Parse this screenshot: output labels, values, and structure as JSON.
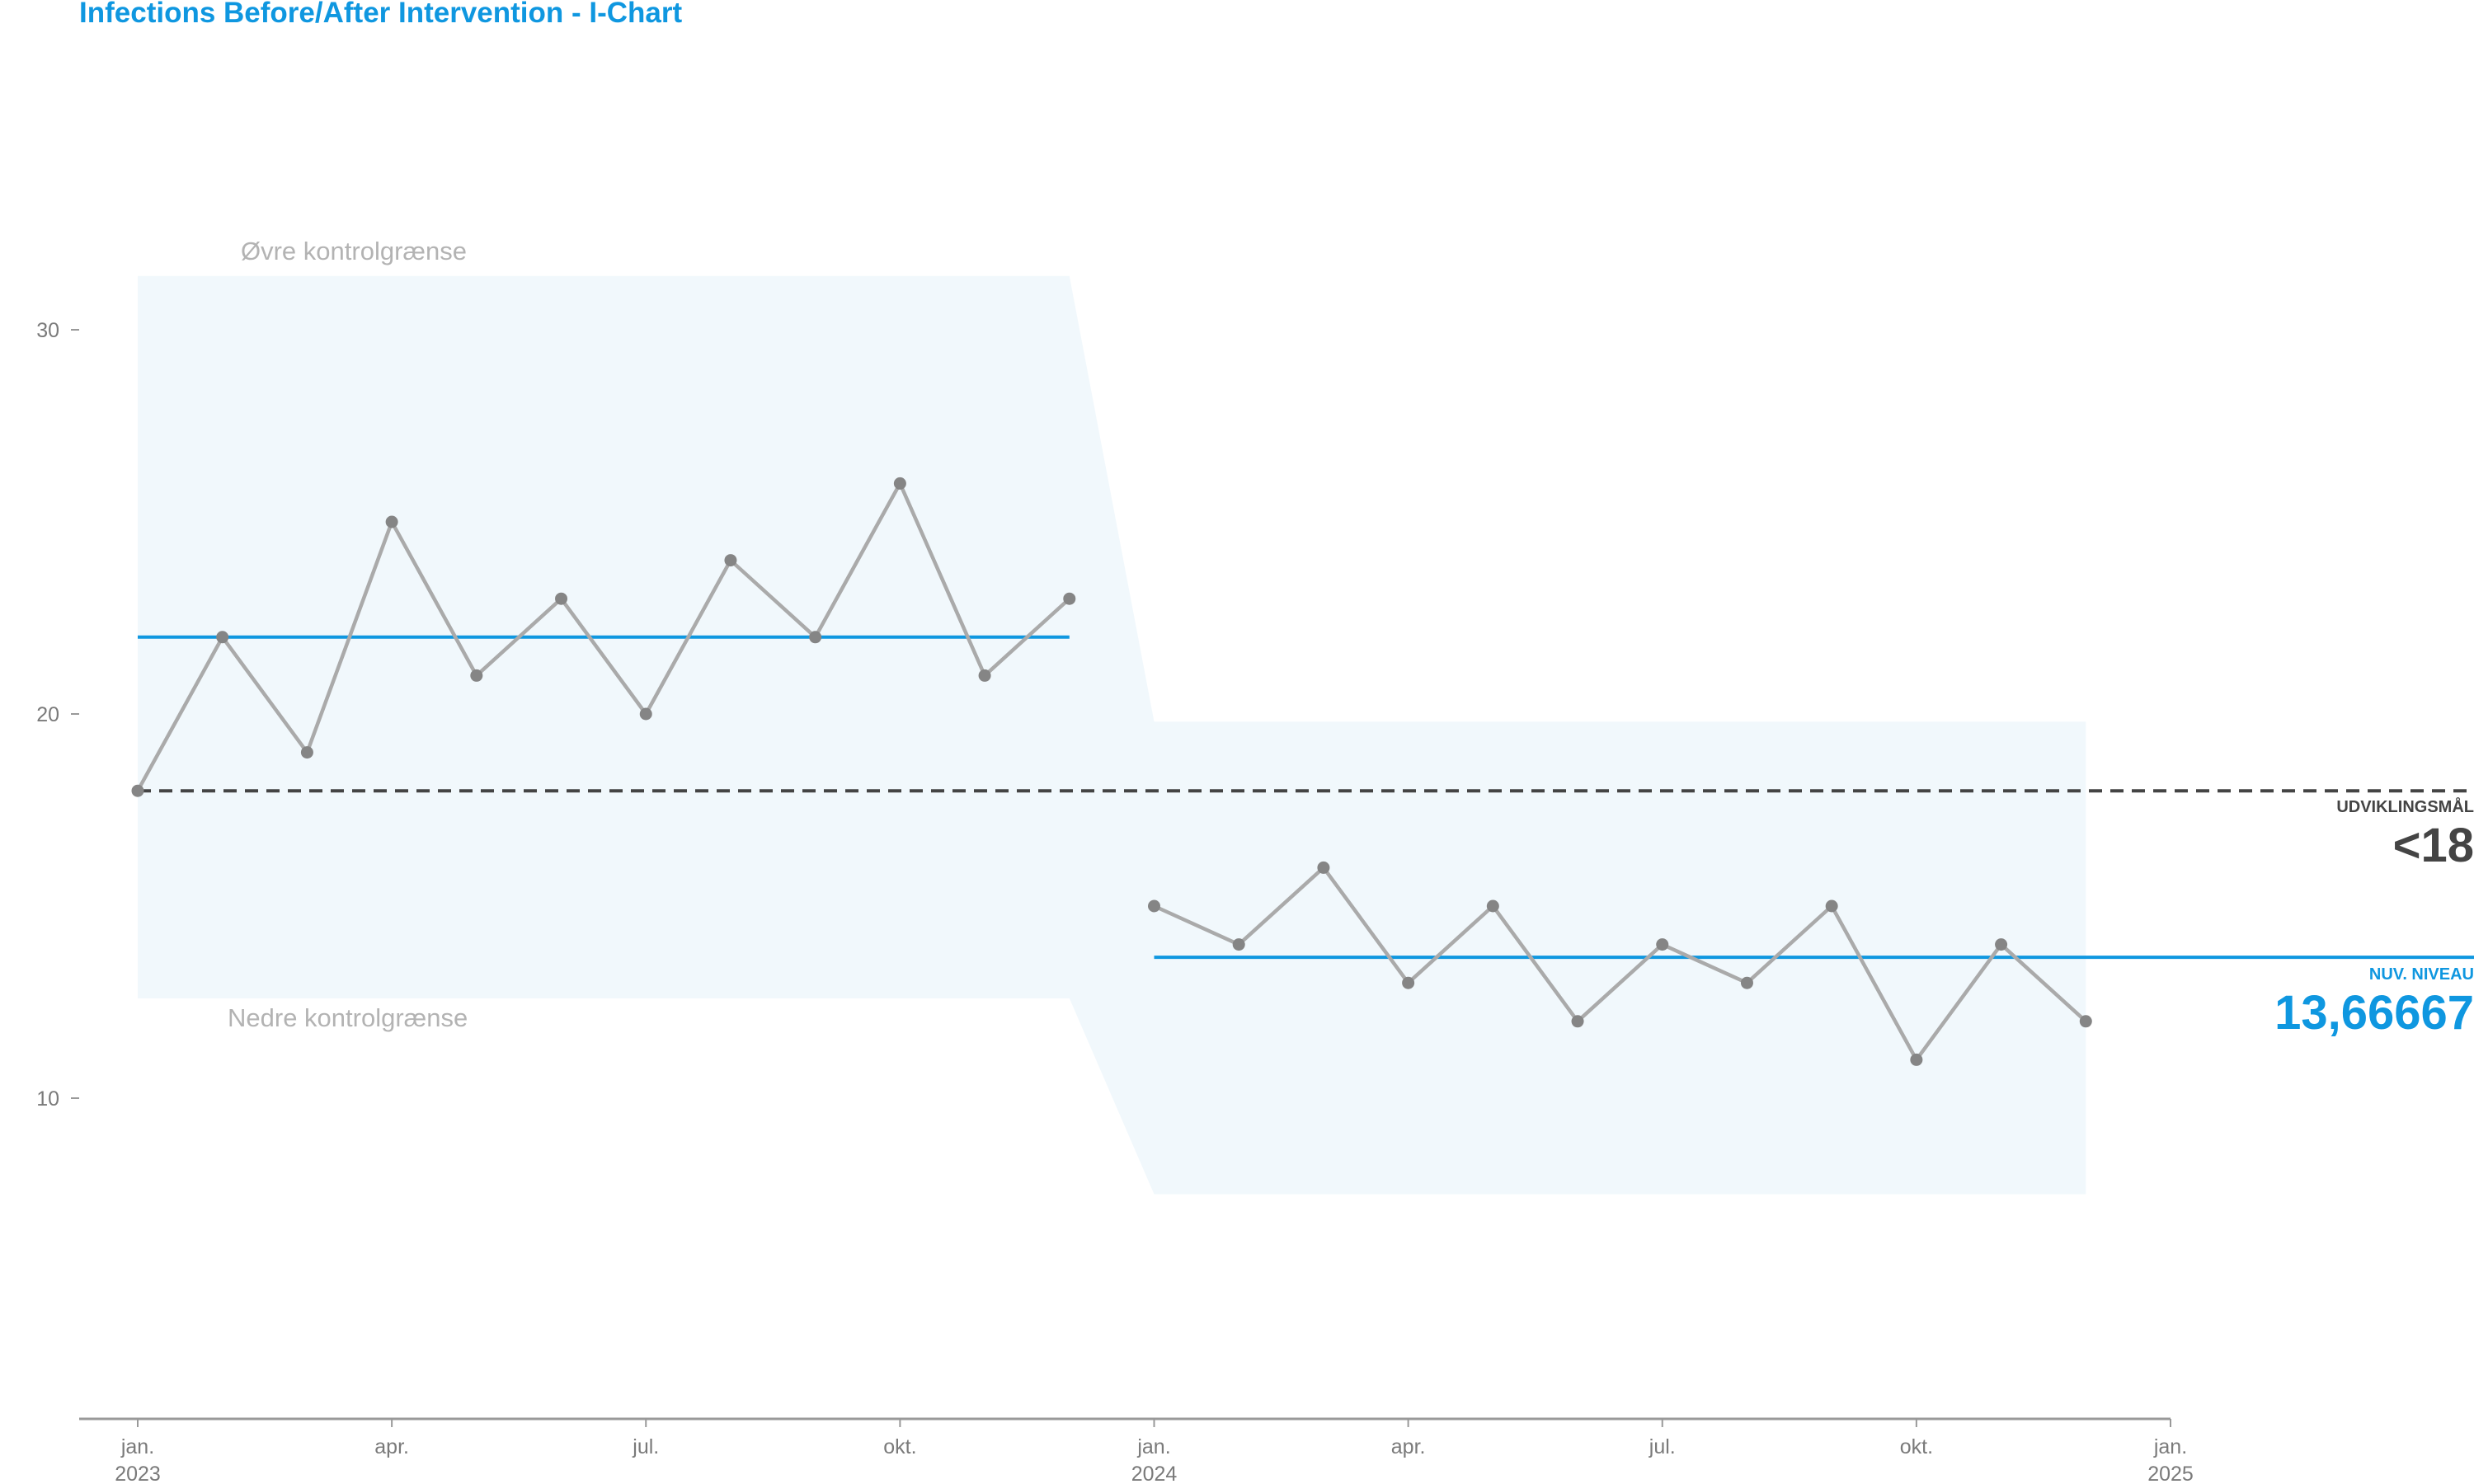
{
  "title": "Infections Before/After Intervention - I-Chart",
  "colors": {
    "title": "#0f97e0",
    "center_line": "#0f97e0",
    "target_line": "#444444",
    "data_line": "#aaaaaa",
    "data_point": "#858585",
    "control_band": "#f1f8fc",
    "axis": "#999999",
    "tick_text": "#7a7a7a",
    "limit_text": "#b3b3b3"
  },
  "labels": {
    "upper_limit": "Øvre kontrolgrænse",
    "lower_limit": "Nedre kontrolgrænse"
  },
  "target": {
    "caption": "UDVIKLINGSMÅL",
    "value_text": "<18"
  },
  "current_level": {
    "caption": "NUV. NIVEAU",
    "value_text": "13,66667"
  },
  "chart_data": {
    "type": "line",
    "title": "Infections Before/After Intervention - I-Chart",
    "xlabel": "",
    "ylabel": "",
    "x_range": [
      "2023-01",
      "2025-01"
    ],
    "y_range": [
      2,
      35
    ],
    "y_ticks": [
      10,
      20,
      30
    ],
    "x_ticks": [
      {
        "date": "2023-01",
        "month": "jan.",
        "year": "2023"
      },
      {
        "date": "2023-04",
        "month": "apr.",
        "year": ""
      },
      {
        "date": "2023-07",
        "month": "jul.",
        "year": ""
      },
      {
        "date": "2023-10",
        "month": "okt.",
        "year": ""
      },
      {
        "date": "2024-01",
        "month": "jan.",
        "year": "2024"
      },
      {
        "date": "2024-04",
        "month": "apr.",
        "year": ""
      },
      {
        "date": "2024-07",
        "month": "jul.",
        "year": ""
      },
      {
        "date": "2024-10",
        "month": "okt.",
        "year": ""
      },
      {
        "date": "2025-01",
        "month": "jan.",
        "year": "2025"
      }
    ],
    "grid": false,
    "dates": [
      "2023-01",
      "2023-02",
      "2023-03",
      "2023-04",
      "2023-05",
      "2023-06",
      "2023-07",
      "2023-08",
      "2023-09",
      "2023-10",
      "2023-11",
      "2023-12",
      "2024-01",
      "2024-02",
      "2024-03",
      "2024-04",
      "2024-05",
      "2024-06",
      "2024-07",
      "2024-08",
      "2024-09",
      "2024-10",
      "2024-11",
      "2024-12"
    ],
    "values": [
      18,
      22,
      19,
      25,
      21,
      23,
      20,
      24,
      22,
      26,
      21,
      23,
      15,
      14,
      16,
      13,
      15,
      12,
      14,
      13,
      15,
      11,
      14,
      12
    ],
    "phases": [
      {
        "start": "2023-01",
        "end": "2023-12",
        "center": 22.0,
        "ucl": 31.4,
        "lcl": 12.6
      },
      {
        "start": "2024-01",
        "end": "2024-12",
        "center": 13.66667,
        "ucl": 19.8,
        "lcl": 7.5
      }
    ],
    "target": 18
  }
}
